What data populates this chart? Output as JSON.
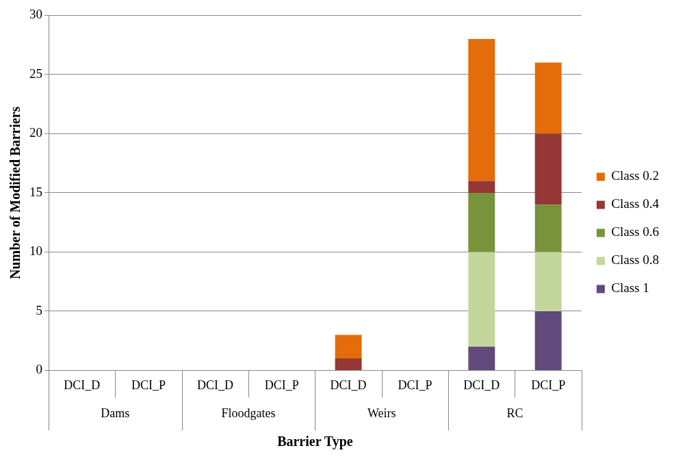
{
  "chart_data": {
    "type": "bar",
    "stacked": true,
    "xlabel": "Barrier Type",
    "ylabel": "Number of Modified Barriers",
    "categories": [
      "DCI_D",
      "DCI_P",
      "DCI_D",
      "DCI_P",
      "DCI_D",
      "DCI_P",
      "DCI_D",
      "DCI_P"
    ],
    "annotations": [
      "Dams",
      "Floodgates",
      "Weirs",
      "RC"
    ],
    "series": [
      {
        "name": "Class 1",
        "color": "#604a7b",
        "values": [
          0,
          0,
          0,
          0,
          0,
          0,
          2,
          5
        ]
      },
      {
        "name": "Class 0.8",
        "color": "#c3d69b",
        "values": [
          0,
          0,
          0,
          0,
          0,
          0,
          8,
          5
        ]
      },
      {
        "name": "Class 0.6",
        "color": "#77933c",
        "values": [
          0,
          0,
          0,
          0,
          0,
          0,
          5,
          4
        ]
      },
      {
        "name": "Class 0.4",
        "color": "#953735",
        "values": [
          0,
          0,
          0,
          0,
          1,
          0,
          1,
          6
        ]
      },
      {
        "name": "Class 0.2",
        "color": "#e46c0a",
        "values": [
          0,
          0,
          0,
          0,
          2,
          0,
          12,
          6
        ]
      }
    ],
    "ylim": [
      0,
      30
    ],
    "yticks": [
      0,
      5,
      10,
      15,
      20,
      25,
      30
    ],
    "grid": "y",
    "legend": "right"
  }
}
